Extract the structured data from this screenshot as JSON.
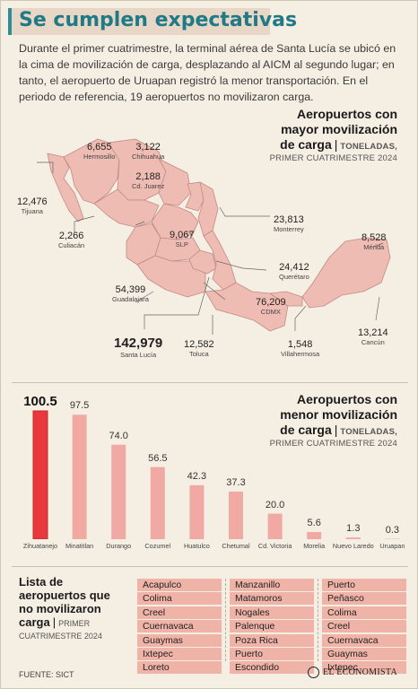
{
  "title": "Se cumplen expectativas",
  "intro": "Durante el primer cuatrimestre, la terminal aérea de Santa Lucía se ubicó en la cima de movilización de carga, desplazando al AICM al segundo lugar; en tanto, el aeropuerto de Uruapan registró la menor transportación. En el periodo de referencia, 19 aeropuertos no movilizaron carga.",
  "map_header": {
    "line1": "Aeropuertos con",
    "line2": "mayor movilización",
    "line3": "de carga",
    "sub1": "TONELADAS,",
    "sub2": "PRIMER CUATRIMESTRE 2024"
  },
  "map_labels": [
    {
      "value": "6,655",
      "city": "Hermosillo"
    },
    {
      "value": "3,122",
      "city": "Chihuahua"
    },
    {
      "value": "2,188",
      "city": "Cd. Juarez"
    },
    {
      "value": "12,476",
      "city": "Tijuana"
    },
    {
      "value": "2,266",
      "city": "Culiacán"
    },
    {
      "value": "9,067",
      "city": "SLP"
    },
    {
      "value": "23,813",
      "city": "Monterrey"
    },
    {
      "value": "8,528",
      "city": "Mérida"
    },
    {
      "value": "24,412",
      "city": "Querétaro"
    },
    {
      "value": "54,399",
      "city": "Guadalajara"
    },
    {
      "value": "76,209",
      "city": "CDMX"
    },
    {
      "value": "142,979",
      "city": "Santa Lucía"
    },
    {
      "value": "12,582",
      "city": "Toluca"
    },
    {
      "value": "1,548",
      "city": "Villahermosa"
    },
    {
      "value": "13,214",
      "city": "Cancún"
    }
  ],
  "bars_header": {
    "line1": "Aeropuertos con",
    "line2": "menor movilización",
    "line3": "de carga",
    "sub1": "TONELADAS,",
    "sub2": "PRIMER CUATRIMESTRE 2024"
  },
  "chart_data": {
    "type": "bar",
    "title": "Aeropuertos con menor movilización de carga",
    "subtitle": "TONELADAS, PRIMER CUATRIMESTRE 2024",
    "categories": [
      "Zihuatanejo",
      "Minatitlan",
      "Durango",
      "Cozumel",
      "Huatulco",
      "Chetumal",
      "Cd. Victoria",
      "Morelia",
      "Nuevo Laredo",
      "Uruapan"
    ],
    "values": [
      100.5,
      97.5,
      74.0,
      56.5,
      42.3,
      37.3,
      20.0,
      5.6,
      1.3,
      0.3
    ],
    "value_labels": [
      "100.5",
      "97.5",
      "74.0",
      "56.5",
      "42.3",
      "37.3",
      "20.0",
      "5.6",
      "1.3",
      "0.3"
    ],
    "highlight_index": 0,
    "colors": {
      "highlight": "#e8383d",
      "bar": "#f0aaa3",
      "highlight_edge": "#c62a2f"
    }
  },
  "list": {
    "title_lines": [
      "Lista de",
      "aeropuertos que",
      "no movilizaron",
      "carga"
    ],
    "sub": "PRIMER",
    "sub2": "CUATRIMESTRE 2024",
    "col1": [
      "Acapulco",
      "Colima",
      "Creel",
      "Cuernavaca",
      "Guaymas",
      "Ixtepec",
      "Loreto"
    ],
    "col2": [
      "Manzanillo",
      "Matamoros",
      "Nogales",
      "Palenque",
      "Poza Rica",
      "Puerto",
      "Escondido"
    ],
    "col3": [
      "Puerto",
      "Peñasco",
      "Colima",
      "Creel",
      "Cuernavaca",
      "Guaymas",
      "Ixtepec"
    ]
  },
  "footer": {
    "source": "FUENTE: SICT",
    "brand": "EL ECONOMISTA"
  },
  "colors": {
    "title": "#1f7a86",
    "map_fill": "#eebcb3",
    "map_stroke": "#c28b85",
    "bg": "#f5efe3"
  }
}
